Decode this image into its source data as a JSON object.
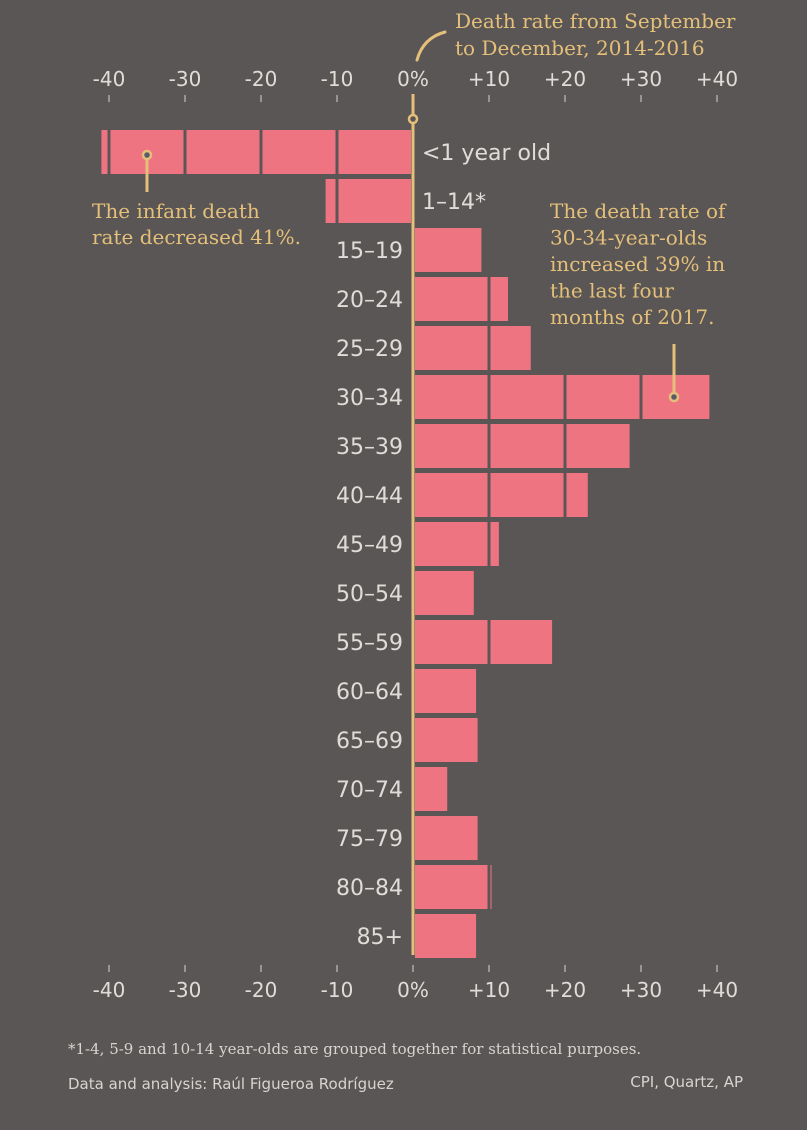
{
  "chart_data": {
    "type": "bar",
    "orientation": "horizontal",
    "categories": [
      "<1 year old",
      "1–14*",
      "15–19",
      "20–24",
      "25–29",
      "30–34",
      "35–39",
      "40–44",
      "45–49",
      "50–54",
      "55–59",
      "60–64",
      "65–69",
      "70–74",
      "75–79",
      "80–84",
      "85+"
    ],
    "values": [
      -41,
      -11.5,
      9,
      12.5,
      15.5,
      39,
      28.5,
      23,
      11.3,
      8,
      18.3,
      8.3,
      8.5,
      4.5,
      8.5,
      10.2,
      8.3
    ],
    "unit": "% change",
    "xlim": [
      -40,
      40
    ],
    "xticks": [
      -40,
      -30,
      -20,
      -10,
      0,
      10,
      20,
      30,
      40
    ],
    "xtick_labels": [
      "-40",
      "-30",
      "-20",
      "-10",
      "0%",
      "+10",
      "+20",
      "+30",
      "+40"
    ],
    "baseline_label": "Death rate from September to December, 2014-2016",
    "baseline_label_lines": [
      "Death rate from September",
      "to December, 2014-2016"
    ],
    "annotations": [
      {
        "target": "<1 year old",
        "lines": [
          "The infant death",
          "rate decreased 41%."
        ]
      },
      {
        "target": "30–34",
        "lines": [
          "The death rate of",
          "30-34-year-olds",
          "increased 39% in",
          "the last four",
          "months of 2017."
        ]
      }
    ],
    "grid": false,
    "segment_step": 10
  },
  "colors": {
    "background": "#5a5655",
    "bar": "#ee7482",
    "accent": "#e5c07a",
    "text": "#e0dcd8"
  },
  "footer": {
    "footnote": "*1-4, 5-9 and 10-14 year-olds are grouped together for statistical purposes.",
    "credit": "Data and analysis: Raúl Figueroa Rodríguez",
    "source": "CPI, Quartz, AP"
  }
}
